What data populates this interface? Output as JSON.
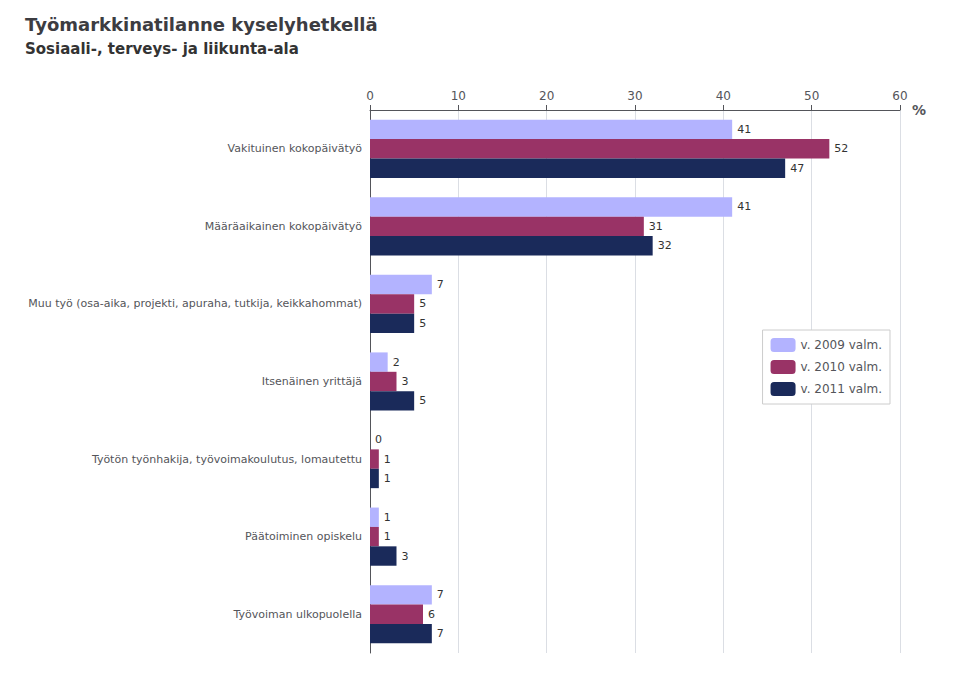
{
  "chart_data": {
    "type": "bar",
    "orientation": "horizontal",
    "title": "Työmarkkinatilanne kyselyhetkellä",
    "subtitle": "Sosiaali-, terveys- ja liikunta-ala",
    "xlabel": "%",
    "categories": [
      "Vakituinen kokopäivätyö",
      "Määräaikainen kokopäivätyö",
      "Muu työ (osa-aika, projekti, apuraha, tutkija, keikkahommat)",
      "Itsenäinen yrittäjä",
      "Työtön työnhakija, työvoimakoulutus, lomautettu",
      "Päätoiminen opiskelu",
      "Työvoiman ulkopuolella"
    ],
    "series": [
      {
        "name": "v. 2009 valm.",
        "color": "#b3b3ff",
        "values": [
          41,
          41,
          7,
          2,
          0,
          1,
          7
        ]
      },
      {
        "name": "v. 2010 valm.",
        "color": "#993366",
        "values": [
          52,
          31,
          5,
          3,
          1,
          1,
          6
        ]
      },
      {
        "name": "v. 2011 valm.",
        "color": "#1a2a5a",
        "values": [
          47,
          32,
          5,
          5,
          1,
          3,
          7
        ]
      }
    ],
    "xlim": [
      0,
      60
    ],
    "xticks": [
      0,
      10,
      20,
      30,
      40,
      50,
      60
    ],
    "grid": true,
    "data_labels": true,
    "legend": "right"
  }
}
